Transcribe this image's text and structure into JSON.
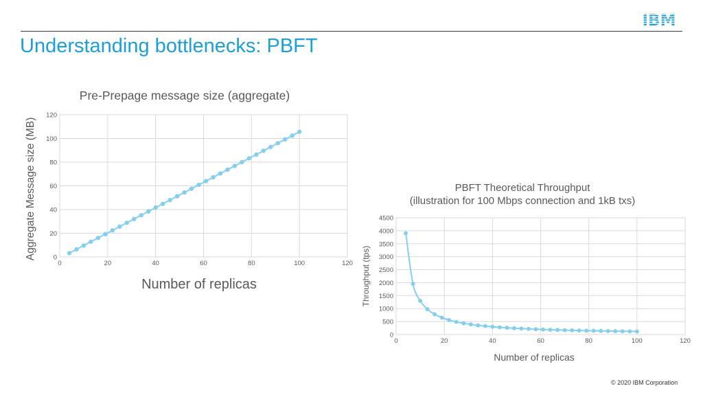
{
  "slide": {
    "title": "Understanding bottlenecks: PBFT",
    "footer": "© 2020 IBM Corporation",
    "logo_text": "IBM",
    "accent_color": "#1a9fd9",
    "series_color": "#84cfee"
  },
  "chart_data": [
    {
      "type": "line",
      "title": "Pre-Prepage message size (aggregate)",
      "xlabel": "Number of replicas",
      "ylabel": "Aggregate Message size (MB)",
      "xlim": [
        0,
        120
      ],
      "ylim": [
        0,
        120
      ],
      "xticks": [
        0,
        20,
        40,
        60,
        80,
        100,
        120
      ],
      "yticks": [
        0,
        20,
        40,
        60,
        80,
        100,
        120
      ],
      "grid": true,
      "x": [
        4,
        7,
        10,
        13,
        16,
        19,
        22,
        25,
        28,
        31,
        34,
        37,
        40,
        43,
        46,
        49,
        52,
        55,
        58,
        61,
        64,
        67,
        70,
        73,
        76,
        79,
        82,
        85,
        88,
        91,
        94,
        97,
        100
      ],
      "y": [
        3.2,
        6.4,
        9.6,
        12.8,
        16.0,
        19.2,
        22.4,
        25.6,
        28.8,
        32.0,
        35.2,
        38.4,
        41.6,
        44.8,
        48.0,
        51.2,
        54.4,
        57.6,
        60.8,
        64.0,
        67.2,
        70.4,
        73.6,
        76.8,
        80.0,
        83.2,
        86.4,
        89.6,
        92.8,
        96.0,
        99.2,
        102.4,
        105.6
      ]
    },
    {
      "type": "line",
      "title": "PBFT Theoretical Throughput",
      "subtitle": "(illustration for 100 Mbps connection and 1kB txs)",
      "xlabel": "Number of replicas",
      "ylabel": "Throughput (tps)",
      "xlim": [
        0,
        120
      ],
      "ylim": [
        0,
        4500
      ],
      "xticks": [
        0,
        20,
        40,
        60,
        80,
        100,
        120
      ],
      "yticks": [
        0,
        500,
        1000,
        1500,
        2000,
        2500,
        3000,
        3500,
        4000,
        4500
      ],
      "grid": true,
      "x": [
        4,
        7,
        10,
        13,
        16,
        19,
        22,
        25,
        28,
        31,
        34,
        37,
        40,
        43,
        46,
        49,
        52,
        55,
        58,
        61,
        64,
        67,
        70,
        73,
        76,
        79,
        82,
        85,
        88,
        91,
        94,
        97,
        100
      ],
      "y": [
        3906,
        1953,
        1302,
        977,
        781,
        651,
        558,
        488,
        434,
        391,
        355,
        326,
        300,
        279,
        260,
        244,
        230,
        217,
        206,
        195,
        186,
        178,
        170,
        163,
        156,
        150,
        145,
        140,
        135,
        130,
        126,
        122,
        118
      ]
    }
  ]
}
